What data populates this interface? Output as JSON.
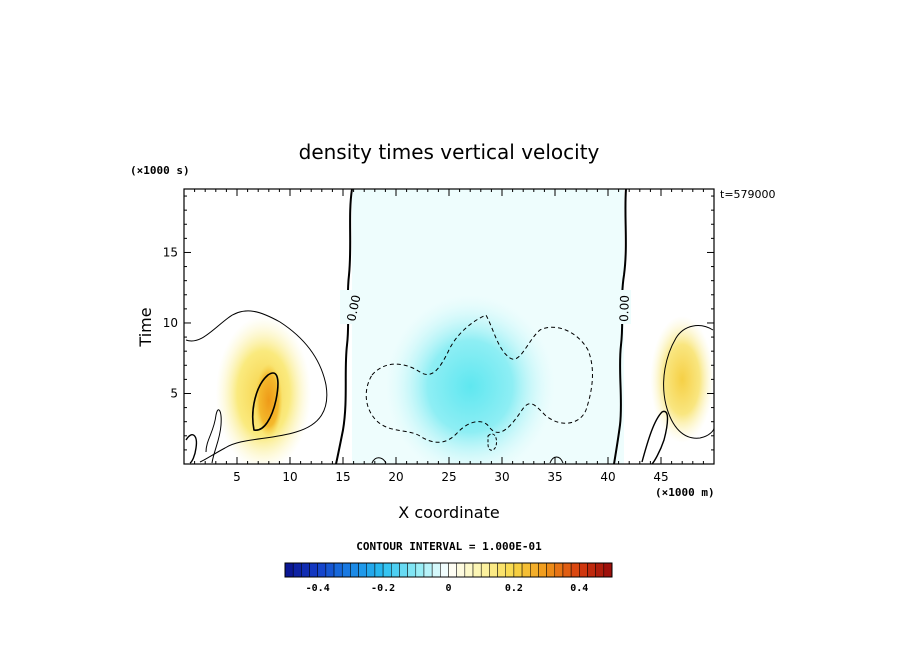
{
  "chart_data": {
    "type": "heatmap",
    "title": "density times vertical velocity",
    "xlabel": "X coordinate",
    "ylabel": "Time",
    "x_unit": "(×1000 m)",
    "y_unit": "(×1000 s)",
    "time_label": "t=579000",
    "xlim": [
      0,
      50
    ],
    "ylim": [
      0,
      19.5
    ],
    "xticks": [
      5,
      10,
      15,
      20,
      25,
      30,
      35,
      40,
      45
    ],
    "yticks": [
      5,
      10,
      15
    ],
    "contour_interval_text": "CONTOUR INTERVAL = 1.000E-01",
    "zero_contour_label": "0.00",
    "zero_contours_x": [
      15.8,
      41.2
    ],
    "colorbar": {
      "min": -0.5,
      "max": 0.5,
      "ticks": [
        -0.4,
        -0.2,
        0,
        0.2,
        0.4
      ],
      "tick_labels": [
        "-0.4",
        "-0.2",
        "0",
        "0.2",
        "0.4"
      ]
    },
    "field_features": [
      {
        "x": 7.5,
        "y": 5.0,
        "rx": 4.5,
        "ry": 5.5,
        "value": 0.22
      },
      {
        "x": 8.0,
        "y": 4.5,
        "rx": 1.3,
        "ry": 2.6,
        "value": 0.28
      },
      {
        "x": 27.0,
        "y": 5.5,
        "rx": 8.0,
        "ry": 6.5,
        "value": -0.13
      },
      {
        "x": 47.0,
        "y": 6.0,
        "rx": 3.0,
        "ry": 4.5,
        "value": 0.17
      }
    ]
  },
  "colors": {
    "negative_strong": "#0a1f9e",
    "negative_mid": "#1fa6e8",
    "negative_weak": "#a8f2f5",
    "zero": "#ffffff",
    "positive_weak": "#fcf7b0",
    "positive_mid": "#f2a21a",
    "positive_strong": "#b21010"
  }
}
